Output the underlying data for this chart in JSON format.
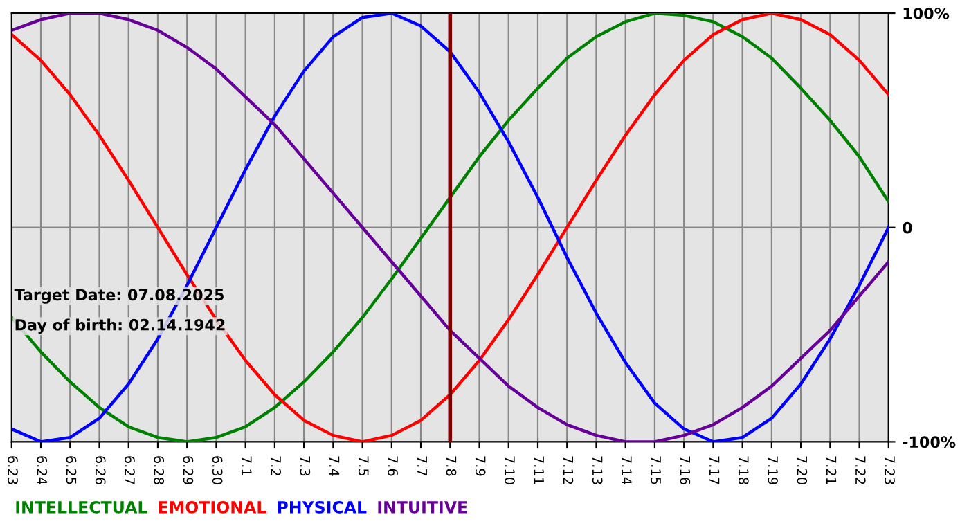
{
  "chart_data": {
    "type": "line",
    "categories": [
      "6.23",
      "6.24",
      "6.25",
      "6.26",
      "6.27",
      "6.28",
      "6.29",
      "6.30",
      "7.1",
      "7.2",
      "7.3",
      "7.4",
      "7.5",
      "7.6",
      "7.7",
      "7.8",
      "7.9",
      "7.10",
      "7.11",
      "7.12",
      "7.13",
      "7.14",
      "7.15",
      "7.16",
      "7.17",
      "7.18",
      "7.19",
      "7.20",
      "7.21",
      "7.22",
      "7.23"
    ],
    "series": [
      {
        "name": "INTELLECTUAL",
        "color": "#008000",
        "values": [
          -42,
          -58,
          -72,
          -84,
          -93,
          -98,
          -100,
          -98,
          -93,
          -84,
          -72,
          -58,
          -42,
          -24,
          -5,
          14,
          33,
          50,
          65,
          79,
          89,
          96,
          100,
          99,
          96,
          89,
          79,
          65,
          50,
          33,
          12
        ]
      },
      {
        "name": "EMOTIONAL",
        "color": "#ff0000",
        "values": [
          90,
          78,
          62,
          43,
          22,
          0,
          -22,
          -43,
          -62,
          -78,
          -90,
          -97,
          -100,
          -97,
          -90,
          -78,
          -62,
          -43,
          -22,
          0,
          22,
          43,
          62,
          78,
          90,
          97,
          100,
          97,
          90,
          78,
          62
        ]
      },
      {
        "name": "PHYSICAL",
        "color": "#0000ff",
        "values": [
          -94,
          -100,
          -98,
          -89,
          -73,
          -52,
          -27,
          0,
          27,
          52,
          73,
          89,
          98,
          100,
          94,
          82,
          63,
          40,
          14,
          -14,
          -40,
          -63,
          -82,
          -94,
          -100,
          -98,
          -89,
          -73,
          -52,
          -27,
          0
        ]
      },
      {
        "name": "INTUITIVE",
        "color": "#660099",
        "values": [
          92,
          97,
          100,
          100,
          97,
          92,
          84,
          74,
          61,
          48,
          32,
          16,
          0,
          -16,
          -32,
          -48,
          -61,
          -74,
          -84,
          -92,
          -97,
          -100,
          -100,
          -97,
          -92,
          -84,
          -74,
          -61,
          -48,
          -32,
          -16
        ]
      }
    ],
    "ylim": [
      -100,
      100
    ],
    "yticks": [
      {
        "value": -100,
        "label": "-100%"
      },
      0,
      {
        "value": 100,
        "label": "100%"
      }
    ],
    "ref_lines": [
      {
        "axis": "x",
        "value": "7.8",
        "color": "#800000"
      }
    ],
    "annotations": [
      "Target Date: 07.08.2025",
      "Day of birth: 02.14.1942"
    ],
    "grid": true,
    "legend": "bottom",
    "marker": "none",
    "line_style": "solid"
  }
}
